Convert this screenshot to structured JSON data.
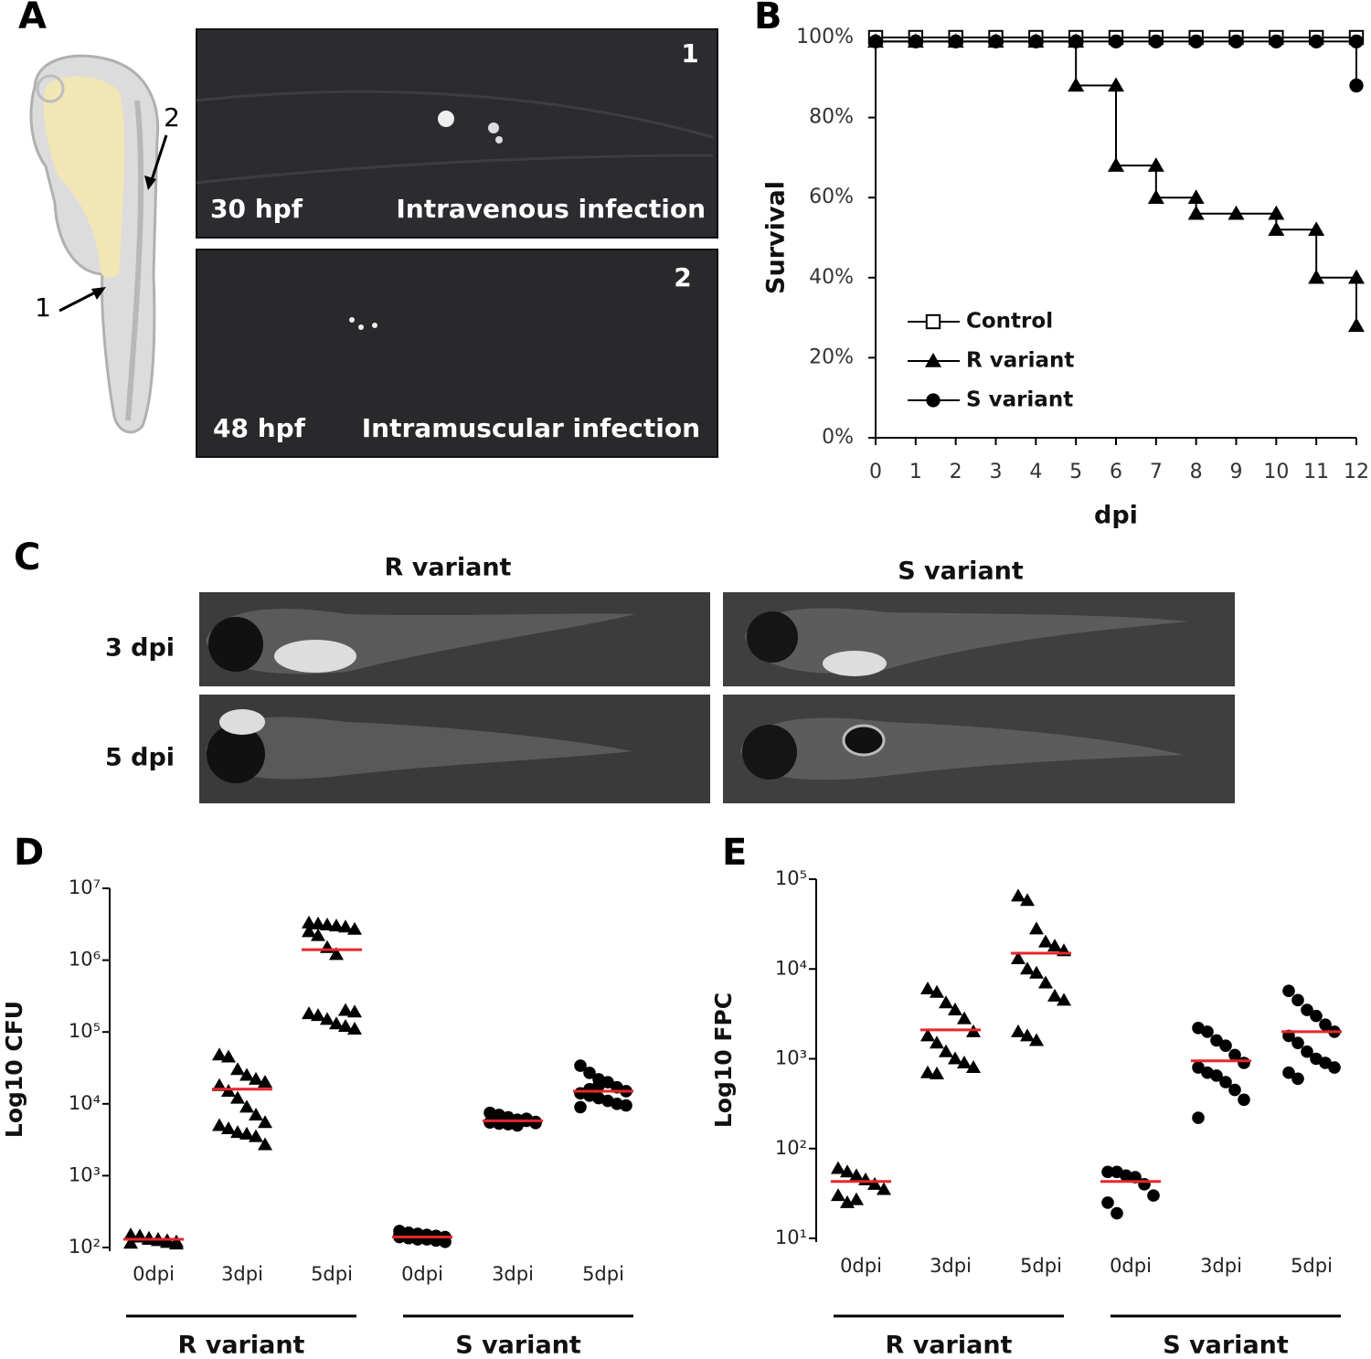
{
  "panel_labels": [
    "A",
    "B",
    "C",
    "D",
    "E"
  ],
  "panel_a": {
    "embryo_labels": [
      "1",
      "2"
    ],
    "images": [
      {
        "number": "1",
        "stage": "30 hpf",
        "route": "Intravenous infection"
      },
      {
        "number": "2",
        "stage": "48 hpf",
        "route": "Intramuscular infection"
      }
    ]
  },
  "panel_c": {
    "columns": [
      "R variant",
      "S variant"
    ],
    "rows": [
      "3 dpi",
      "5 dpi"
    ]
  },
  "chart_data": [
    {
      "type": "line",
      "x_label": "dpi",
      "y_label": "Survival",
      "xlim": [
        0,
        12
      ],
      "xticks": [
        0,
        1,
        2,
        3,
        4,
        5,
        6,
        7,
        8,
        9,
        10,
        11,
        12
      ],
      "ylim": [
        0,
        100
      ],
      "yticks": [
        {
          "value": 0,
          "label": "0%"
        },
        {
          "value": 20,
          "label": "20%"
        },
        {
          "value": 40,
          "label": "40%"
        },
        {
          "value": 60,
          "label": "60%"
        },
        {
          "value": 80,
          "label": "80%"
        },
        {
          "value": 100,
          "label": "100%"
        }
      ],
      "legend": "center left",
      "series": [
        {
          "name": "Control",
          "color": "#000000",
          "marker": "square-open",
          "x": [
            0,
            1,
            2,
            3,
            4,
            5,
            6,
            7,
            8,
            9,
            10,
            11,
            12
          ],
          "values": [
            100,
            100,
            100,
            100,
            100,
            100,
            100,
            100,
            100,
            100,
            100,
            100,
            100
          ]
        },
        {
          "name": "R  variant",
          "color": "#000000",
          "marker": "triangle",
          "x": [
            0,
            1,
            2,
            3,
            4,
            5,
            5,
            6,
            6,
            7,
            7,
            8,
            8,
            9,
            10,
            10,
            11,
            11,
            12,
            12
          ],
          "values": [
            99,
            99,
            99,
            99,
            99,
            99,
            88,
            88,
            68,
            68,
            60,
            60,
            56,
            56,
            56,
            52,
            52,
            40,
            40,
            28
          ]
        },
        {
          "name": "S variant",
          "color": "#000000",
          "marker": "circle",
          "x": [
            0,
            1,
            2,
            3,
            4,
            5,
            6,
            7,
            8,
            9,
            10,
            11,
            12,
            12
          ],
          "values": [
            99,
            99,
            99,
            99,
            99,
            99,
            99,
            99,
            99,
            99,
            99,
            99,
            99,
            88
          ]
        }
      ]
    },
    {
      "type": "dot-plot",
      "y_label": "Log10 CFU",
      "log_y": true,
      "ylim": [
        100,
        10000000
      ],
      "yticks": [
        {
          "value": 100,
          "label": "10²"
        },
        {
          "value": 1000,
          "label": "10³"
        },
        {
          "value": 10000,
          "label": "10⁴"
        },
        {
          "value": 100000,
          "label": "10⁵"
        },
        {
          "value": 1000000,
          "label": "10⁶"
        },
        {
          "value": 10000000,
          "label": "10⁷"
        }
      ],
      "series": [
        {
          "name": "R variant",
          "marker": "triangle",
          "color": "#000000",
          "median_color": "#e8262b",
          "categories": [
            "0dpi",
            "3dpi",
            "5dpi"
          ],
          "values": [
            [
              150,
              140,
              135,
              130,
              125,
              120,
              115,
              145,
              130,
              125,
              118,
              112
            ],
            [
              48000,
              45000,
              30000,
              25000,
              22000,
              20000,
              18000,
              15000,
              12000,
              9000,
              7000,
              5500,
              5000,
              4500,
              4000,
              3800,
              3500,
              2700
            ],
            [
              3300000,
              3200000,
              3100000,
              3000000,
              2900000,
              2700000,
              2500000,
              2200000,
              1500000,
              1200000,
              200000,
              190000,
              180000,
              170000,
              150000,
              130000,
              120000,
              110000
            ]
          ],
          "medians": [
            130,
            16000,
            1400000
          ]
        },
        {
          "name": "S variant",
          "marker": "circle",
          "color": "#000000",
          "median_color": "#e8262b",
          "categories": [
            "0dpi",
            "3dpi",
            "5dpi"
          ],
          "values": [
            [
              170,
              160,
              155,
              150,
              145,
              140,
              140,
              135,
              130,
              130,
              125,
              120,
              150,
              160,
              135
            ],
            [
              7500,
              7000,
              6500,
              6000,
              5800,
              5600,
              5500,
              5300,
              5200,
              5000,
              6200,
              5400
            ],
            [
              34000,
              27000,
              22000,
              20000,
              17000,
              15000,
              14000,
              13000,
              12000,
              11000,
              10000,
              9500,
              9000,
              16000,
              18000
            ]
          ],
          "medians": [
            140,
            5800,
            15000
          ]
        }
      ]
    },
    {
      "type": "dot-plot",
      "y_label": "Log10 FPC",
      "log_y": true,
      "ylim": [
        10,
        100000
      ],
      "yticks": [
        {
          "value": 10,
          "label": "10¹"
        },
        {
          "value": 100,
          "label": "10²"
        },
        {
          "value": 1000,
          "label": "10³"
        },
        {
          "value": 10000,
          "label": "10⁴"
        },
        {
          "value": 100000,
          "label": "10⁵"
        }
      ],
      "series": [
        {
          "name": "R variant",
          "marker": "triangle",
          "color": "#000000",
          "median_color": "#e8262b",
          "categories": [
            "0dpi",
            "3dpi",
            "5dpi"
          ],
          "values": [
            [
              60,
              55,
              50,
              45,
              40,
              35,
              30,
              25,
              27
            ],
            [
              6000,
              5500,
              4200,
              3500,
              2800,
              2000,
              1800,
              1500,
              1200,
              1000,
              900,
              800,
              700,
              680
            ],
            [
              65000,
              58000,
              28000,
              20000,
              18000,
              16000,
              13000,
              10000,
              9000,
              7000,
              5000,
              4500,
              2000,
              1800,
              1600
            ]
          ],
          "medians": [
            43,
            2100,
            15000
          ]
        },
        {
          "name": "S variant",
          "marker": "circle",
          "color": "#000000",
          "median_color": "#e8262b",
          "categories": [
            "0dpi",
            "3dpi",
            "5dpi"
          ],
          "values": [
            [
              55,
              55,
              50,
              48,
              40,
              30,
              25,
              19
            ],
            [
              2200,
              2000,
              1600,
              1400,
              1100,
              900,
              800,
              700,
              650,
              550,
              450,
              350,
              220
            ],
            [
              5700,
              4500,
              3500,
              3000,
              2400,
              2000,
              1800,
              1500,
              1200,
              1000,
              900,
              800,
              700,
              600
            ]
          ],
          "medians": [
            43,
            950,
            2000
          ]
        }
      ]
    }
  ]
}
